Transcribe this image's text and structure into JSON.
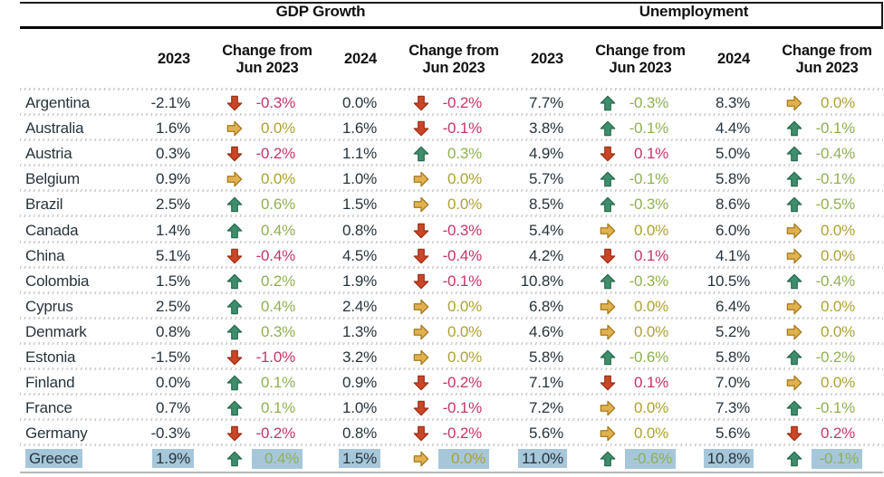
{
  "table": {
    "group_headers": [
      {
        "label": "GDP Growth"
      },
      {
        "label": "Unemployment"
      }
    ],
    "col_headers": {
      "year_2023": "2023",
      "year_2024": "2024",
      "change_line1": "Change from",
      "change_line2": "Jun 2023"
    }
  },
  "colors": {
    "up_arrow_fill": "#3e8e6c",
    "up_arrow_stroke": "#2a6b50",
    "up_text": "#8fb054",
    "down_arrow_fill": "#cb4627",
    "down_arrow_stroke": "#9c3116",
    "down_text": "#c13766",
    "flat_arrow_fill": "#e2b14f",
    "flat_arrow_stroke": "#a4791c",
    "flat_text": "#aca235",
    "value_text": "#27333c",
    "highlight": "#a6c7da"
  },
  "rows": [
    {
      "country": "Argentina",
      "highlight": false,
      "cells": [
        {
          "v": "-2.1%"
        },
        {
          "arrow": "down",
          "v": "-0.3%"
        },
        {
          "v": "0.0%"
        },
        {
          "arrow": "down",
          "v": "-0.2%"
        },
        {
          "v": "7.7%"
        },
        {
          "arrow": "up",
          "v": "-0.3%"
        },
        {
          "v": "8.3%"
        },
        {
          "arrow": "flat",
          "v": "0.0%"
        }
      ]
    },
    {
      "country": "Australia",
      "highlight": false,
      "cells": [
        {
          "v": "1.6%"
        },
        {
          "arrow": "flat",
          "v": "0.0%"
        },
        {
          "v": "1.6%"
        },
        {
          "arrow": "down",
          "v": "-0.1%"
        },
        {
          "v": "3.8%"
        },
        {
          "arrow": "up",
          "v": "-0.1%"
        },
        {
          "v": "4.4%"
        },
        {
          "arrow": "up",
          "v": "-0.1%"
        }
      ]
    },
    {
      "country": "Austria",
      "highlight": false,
      "cells": [
        {
          "v": "0.3%"
        },
        {
          "arrow": "down",
          "v": "-0.2%"
        },
        {
          "v": "1.1%"
        },
        {
          "arrow": "up",
          "v": "0.3%"
        },
        {
          "v": "4.9%"
        },
        {
          "arrow": "down",
          "v": "0.1%"
        },
        {
          "v": "5.0%"
        },
        {
          "arrow": "up",
          "v": "-0.4%"
        }
      ]
    },
    {
      "country": "Belgium",
      "highlight": false,
      "cells": [
        {
          "v": "0.9%"
        },
        {
          "arrow": "flat",
          "v": "0.0%"
        },
        {
          "v": "1.0%"
        },
        {
          "arrow": "flat",
          "v": "0.0%"
        },
        {
          "v": "5.7%"
        },
        {
          "arrow": "up",
          "v": "-0.1%"
        },
        {
          "v": "5.8%"
        },
        {
          "arrow": "up",
          "v": "-0.1%"
        }
      ]
    },
    {
      "country": "Brazil",
      "highlight": false,
      "cells": [
        {
          "v": "2.5%"
        },
        {
          "arrow": "up",
          "v": "0.6%"
        },
        {
          "v": "1.5%"
        },
        {
          "arrow": "flat",
          "v": "0.0%"
        },
        {
          "v": "8.5%"
        },
        {
          "arrow": "up",
          "v": "-0.3%"
        },
        {
          "v": "8.6%"
        },
        {
          "arrow": "up",
          "v": "-0.5%"
        }
      ]
    },
    {
      "country": "Canada",
      "highlight": false,
      "cells": [
        {
          "v": "1.4%"
        },
        {
          "arrow": "up",
          "v": "0.4%"
        },
        {
          "v": "0.8%"
        },
        {
          "arrow": "down",
          "v": "-0.3%"
        },
        {
          "v": "5.4%"
        },
        {
          "arrow": "flat",
          "v": "0.0%"
        },
        {
          "v": "6.0%"
        },
        {
          "arrow": "flat",
          "v": "0.0%"
        }
      ]
    },
    {
      "country": "China",
      "highlight": false,
      "cells": [
        {
          "v": "5.1%"
        },
        {
          "arrow": "down",
          "v": "-0.4%"
        },
        {
          "v": "4.5%"
        },
        {
          "arrow": "down",
          "v": "-0.4%"
        },
        {
          "v": "4.2%"
        },
        {
          "arrow": "down",
          "v": "0.1%"
        },
        {
          "v": "4.1%"
        },
        {
          "arrow": "flat",
          "v": "0.0%"
        }
      ]
    },
    {
      "country": "Colombia",
      "highlight": false,
      "cells": [
        {
          "v": "1.5%"
        },
        {
          "arrow": "up",
          "v": "0.2%"
        },
        {
          "v": "1.9%"
        },
        {
          "arrow": "down",
          "v": "-0.1%"
        },
        {
          "v": "10.8%"
        },
        {
          "arrow": "up",
          "v": "-0.3%"
        },
        {
          "v": "10.5%"
        },
        {
          "arrow": "up",
          "v": "-0.4%"
        }
      ]
    },
    {
      "country": "Cyprus",
      "highlight": false,
      "cells": [
        {
          "v": "2.5%"
        },
        {
          "arrow": "up",
          "v": "0.4%"
        },
        {
          "v": "2.4%"
        },
        {
          "arrow": "flat",
          "v": "0.0%"
        },
        {
          "v": "6.8%"
        },
        {
          "arrow": "flat",
          "v": "0.0%"
        },
        {
          "v": "6.4%"
        },
        {
          "arrow": "flat",
          "v": "0.0%"
        }
      ]
    },
    {
      "country": "Denmark",
      "highlight": false,
      "cells": [
        {
          "v": "0.8%"
        },
        {
          "arrow": "up",
          "v": "0.3%"
        },
        {
          "v": "1.3%"
        },
        {
          "arrow": "flat",
          "v": "0.0%"
        },
        {
          "v": "4.6%"
        },
        {
          "arrow": "flat",
          "v": "0.0%"
        },
        {
          "v": "5.2%"
        },
        {
          "arrow": "flat",
          "v": "0.0%"
        }
      ]
    },
    {
      "country": "Estonia",
      "highlight": false,
      "cells": [
        {
          "v": "-1.5%"
        },
        {
          "arrow": "down",
          "v": "-1.0%"
        },
        {
          "v": "3.2%"
        },
        {
          "arrow": "flat",
          "v": "0.0%"
        },
        {
          "v": "5.8%"
        },
        {
          "arrow": "up",
          "v": "-0.6%"
        },
        {
          "v": "5.8%"
        },
        {
          "arrow": "up",
          "v": "-0.2%"
        }
      ]
    },
    {
      "country": "Finland",
      "highlight": false,
      "cells": [
        {
          "v": "0.0%"
        },
        {
          "arrow": "up",
          "v": "0.1%"
        },
        {
          "v": "0.9%"
        },
        {
          "arrow": "down",
          "v": "-0.2%"
        },
        {
          "v": "7.1%"
        },
        {
          "arrow": "down",
          "v": "0.1%"
        },
        {
          "v": "7.0%"
        },
        {
          "arrow": "flat",
          "v": "0.0%"
        }
      ]
    },
    {
      "country": "France",
      "highlight": false,
      "cells": [
        {
          "v": "0.7%"
        },
        {
          "arrow": "up",
          "v": "0.1%"
        },
        {
          "v": "1.0%"
        },
        {
          "arrow": "down",
          "v": "-0.1%"
        },
        {
          "v": "7.2%"
        },
        {
          "arrow": "flat",
          "v": "0.0%"
        },
        {
          "v": "7.3%"
        },
        {
          "arrow": "up",
          "v": "-0.1%"
        }
      ]
    },
    {
      "country": "Germany",
      "highlight": false,
      "cells": [
        {
          "v": "-0.3%"
        },
        {
          "arrow": "down",
          "v": "-0.2%"
        },
        {
          "v": "0.8%"
        },
        {
          "arrow": "down",
          "v": "-0.2%"
        },
        {
          "v": "5.6%"
        },
        {
          "arrow": "flat",
          "v": "0.0%"
        },
        {
          "v": "5.6%"
        },
        {
          "arrow": "down",
          "v": "0.2%"
        }
      ]
    },
    {
      "country": "Greece",
      "highlight": true,
      "cells": [
        {
          "v": "1.9%"
        },
        {
          "arrow": "up",
          "v": "0.4%"
        },
        {
          "v": "1.5%"
        },
        {
          "arrow": "flat",
          "v": "0.0%"
        },
        {
          "v": "11.0%"
        },
        {
          "arrow": "up",
          "v": "-0.6%"
        },
        {
          "v": "10.8%"
        },
        {
          "arrow": "up",
          "v": "-0.1%"
        }
      ]
    }
  ]
}
